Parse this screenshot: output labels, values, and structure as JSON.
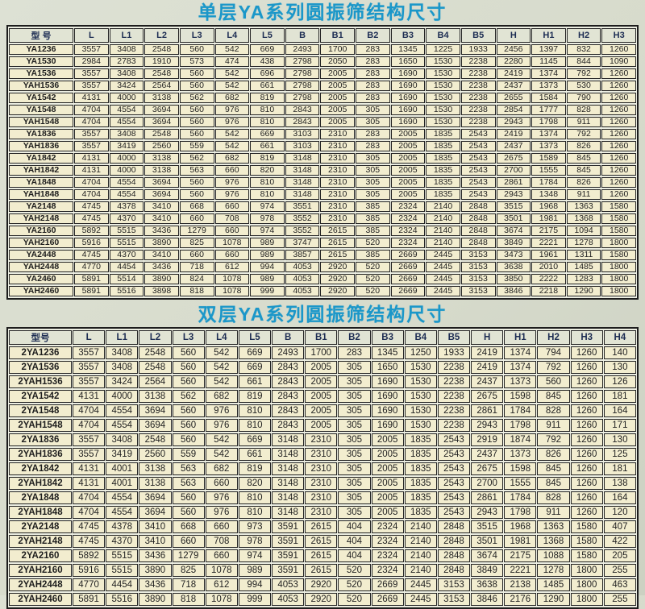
{
  "page": {
    "background_color": "#d7dbcc",
    "cell_background": "#f2edcf",
    "header_background": "#e1e4d4",
    "title_color": "#1b97c9",
    "border_color": "#242424"
  },
  "table1": {
    "title": "单层YA系列圆振筛结构尺寸",
    "columns": [
      "型 号",
      "L",
      "L1",
      "L2",
      "L3",
      "L4",
      "L5",
      "B",
      "B1",
      "B2",
      "B3",
      "B4",
      "B5",
      "H",
      "H1",
      "H2",
      "H3"
    ],
    "rows": [
      [
        "YA1236",
        3557,
        3408,
        2548,
        560,
        542,
        669,
        2493,
        1700,
        283,
        1345,
        1225,
        1933,
        2456,
        1397,
        832,
        1260
      ],
      [
        "YA1530",
        2984,
        2783,
        1910,
        573,
        474,
        438,
        2798,
        2050,
        283,
        1650,
        1530,
        2238,
        2280,
        1145,
        844,
        1090
      ],
      [
        "YA1536",
        3557,
        3408,
        2548,
        560,
        542,
        696,
        2798,
        2005,
        283,
        1690,
        1530,
        2238,
        2419,
        1374,
        792,
        1260
      ],
      [
        "YAH1536",
        3557,
        3424,
        2564,
        560,
        542,
        661,
        2798,
        2005,
        283,
        1690,
        1530,
        2238,
        2437,
        1373,
        530,
        1260
      ],
      [
        "YA1542",
        4131,
        4000,
        3138,
        562,
        682,
        819,
        2798,
        2005,
        283,
        1690,
        1530,
        2238,
        2655,
        1584,
        790,
        1260
      ],
      [
        "YA1548",
        4704,
        4554,
        3694,
        560,
        976,
        810,
        2843,
        2005,
        305,
        1690,
        1530,
        2238,
        2854,
        1777,
        828,
        1260
      ],
      [
        "YAH1548",
        4704,
        4554,
        3694,
        560,
        976,
        810,
        2843,
        2005,
        305,
        1690,
        1530,
        2238,
        2943,
        1798,
        911,
        1260
      ],
      [
        "YA1836",
        3557,
        3408,
        2548,
        560,
        542,
        669,
        3103,
        2310,
        283,
        2005,
        1835,
        2543,
        2419,
        1374,
        792,
        1260
      ],
      [
        "YAH1836",
        3557,
        3419,
        2560,
        559,
        542,
        661,
        3103,
        2310,
        283,
        2005,
        1835,
        2543,
        2437,
        1373,
        826,
        1260
      ],
      [
        "YA1842",
        4131,
        4000,
        3138,
        562,
        682,
        819,
        3148,
        2310,
        305,
        2005,
        1835,
        2543,
        2675,
        1589,
        845,
        1260
      ],
      [
        "YAH1842",
        4131,
        4000,
        3138,
        563,
        660,
        820,
        3148,
        2310,
        305,
        2005,
        1835,
        2543,
        2700,
        1555,
        845,
        1260
      ],
      [
        "YA1848",
        4704,
        4554,
        3694,
        560,
        976,
        810,
        3148,
        2310,
        305,
        2005,
        1835,
        2543,
        2861,
        1784,
        826,
        1260
      ],
      [
        "YAH1848",
        4704,
        4554,
        3694,
        560,
        976,
        810,
        3148,
        2310,
        305,
        2005,
        1835,
        2543,
        2943,
        1348,
        911,
        1260
      ],
      [
        "YA2148",
        4745,
        4378,
        3410,
        668,
        660,
        974,
        3551,
        2310,
        385,
        2324,
        2140,
        2848,
        3515,
        1968,
        1363,
        1580
      ],
      [
        "YAH2148",
        4745,
        4370,
        3410,
        660,
        708,
        978,
        3552,
        2310,
        385,
        2324,
        2140,
        2848,
        3501,
        1981,
        1368,
        1580
      ],
      [
        "YA2160",
        5892,
        5515,
        3436,
        1279,
        660,
        974,
        3552,
        2615,
        385,
        2324,
        2140,
        2848,
        3674,
        2175,
        1094,
        1580
      ],
      [
        "YAH2160",
        5916,
        5515,
        3890,
        825,
        1078,
        989,
        3747,
        2615,
        520,
        2324,
        2140,
        2848,
        3849,
        2221,
        1278,
        1800
      ],
      [
        "YA2448",
        4745,
        4370,
        3410,
        660,
        660,
        989,
        3857,
        2615,
        385,
        2669,
        2445,
        3153,
        3473,
        1961,
        1311,
        1580
      ],
      [
        "YAH2448",
        4770,
        4454,
        3436,
        718,
        612,
        994,
        4053,
        2920,
        520,
        2669,
        2445,
        3153,
        3638,
        2010,
        1485,
        1800
      ],
      [
        "YA2460",
        5891,
        5514,
        3890,
        824,
        1078,
        989,
        4053,
        2920,
        520,
        2669,
        2445,
        3153,
        3850,
        2222,
        1283,
        1800
      ],
      [
        "YAH2460",
        5891,
        5516,
        3898,
        818,
        1078,
        999,
        4053,
        2920,
        520,
        2669,
        2445,
        3153,
        3846,
        2218,
        1290,
        1800
      ]
    ]
  },
  "table2": {
    "title": "双层YA系列圆振筛结构尺寸",
    "columns": [
      "型号",
      "L",
      "L1",
      "L2",
      "L3",
      "L4",
      "L5",
      "B",
      "B1",
      "B2",
      "B3",
      "B4",
      "B5",
      "H",
      "H1",
      "H2",
      "H3",
      "H4"
    ],
    "rows": [
      [
        "2YA1236",
        3557,
        3408,
        2548,
        560,
        542,
        669,
        2493,
        1700,
        283,
        1345,
        1250,
        1933,
        2419,
        1374,
        794,
        1260,
        140
      ],
      [
        "2YA1536",
        3557,
        3408,
        2548,
        560,
        542,
        669,
        2843,
        2005,
        305,
        1650,
        1530,
        2238,
        2419,
        1374,
        792,
        1260,
        130
      ],
      [
        "2YAH1536",
        3557,
        3424,
        2564,
        560,
        542,
        661,
        2843,
        2005,
        305,
        1690,
        1530,
        2238,
        2437,
        1373,
        560,
        1260,
        126
      ],
      [
        "2YA1542",
        4131,
        4000,
        3138,
        562,
        682,
        819,
        2843,
        2005,
        305,
        1690,
        1530,
        2238,
        2675,
        1598,
        845,
        1260,
        181
      ],
      [
        "2YA1548",
        4704,
        4554,
        3694,
        560,
        976,
        810,
        2843,
        2005,
        305,
        1690,
        1530,
        2238,
        2861,
        1784,
        828,
        1260,
        164
      ],
      [
        "2YAH1548",
        4704,
        4554,
        3694,
        560,
        976,
        810,
        2843,
        2005,
        305,
        1690,
        1530,
        2238,
        2943,
        1798,
        911,
        1260,
        171
      ],
      [
        "2YA1836",
        3557,
        3408,
        2548,
        560,
        542,
        669,
        3148,
        2310,
        305,
        2005,
        1835,
        2543,
        2919,
        1874,
        792,
        1260,
        130
      ],
      [
        "2YAH1836",
        3557,
        3419,
        2560,
        559,
        542,
        661,
        3148,
        2310,
        305,
        2005,
        1835,
        2543,
        2437,
        1373,
        826,
        1260,
        125
      ],
      [
        "2YA1842",
        4131,
        4001,
        3138,
        563,
        682,
        819,
        3148,
        2310,
        305,
        2005,
        1835,
        2543,
        2675,
        1598,
        845,
        1260,
        181
      ],
      [
        "2YAH1842",
        4131,
        4001,
        3138,
        563,
        660,
        820,
        3148,
        2310,
        305,
        2005,
        1835,
        2543,
        2700,
        1555,
        845,
        1260,
        138
      ],
      [
        "2YA1848",
        4704,
        4554,
        3694,
        560,
        976,
        810,
        3148,
        2310,
        305,
        2005,
        1835,
        2543,
        2861,
        1784,
        828,
        1260,
        164
      ],
      [
        "2YAH1848",
        4704,
        4554,
        3694,
        560,
        976,
        810,
        3148,
        2310,
        305,
        2005,
        1835,
        2543,
        2943,
        1798,
        911,
        1260,
        120
      ],
      [
        "2YA2148",
        4745,
        4378,
        3410,
        668,
        660,
        973,
        3591,
        2615,
        404,
        2324,
        2140,
        2848,
        3515,
        1968,
        1363,
        1580,
        407
      ],
      [
        "2YAH2148",
        4745,
        4370,
        3410,
        660,
        708,
        978,
        3591,
        2615,
        404,
        2324,
        2140,
        2848,
        3501,
        1981,
        1368,
        1580,
        422
      ],
      [
        "2YA2160",
        5892,
        5515,
        3436,
        1279,
        660,
        974,
        3591,
        2615,
        404,
        2324,
        2140,
        2848,
        3674,
        2175,
        1088,
        1580,
        205
      ],
      [
        "2YAH2160",
        5916,
        5515,
        3890,
        825,
        1078,
        989,
        3591,
        2615,
        520,
        2324,
        2140,
        2848,
        3849,
        2221,
        1278,
        1800,
        255
      ],
      [
        "2YAH2448",
        4770,
        4454,
        3436,
        718,
        612,
        994,
        4053,
        2920,
        520,
        2669,
        2445,
        3153,
        3638,
        2138,
        1485,
        1800,
        463
      ],
      [
        "2YAH2460",
        5891,
        5516,
        3890,
        818,
        1078,
        999,
        4053,
        2920,
        520,
        2669,
        2445,
        3153,
        3846,
        2176,
        1290,
        1800,
        255
      ]
    ]
  }
}
